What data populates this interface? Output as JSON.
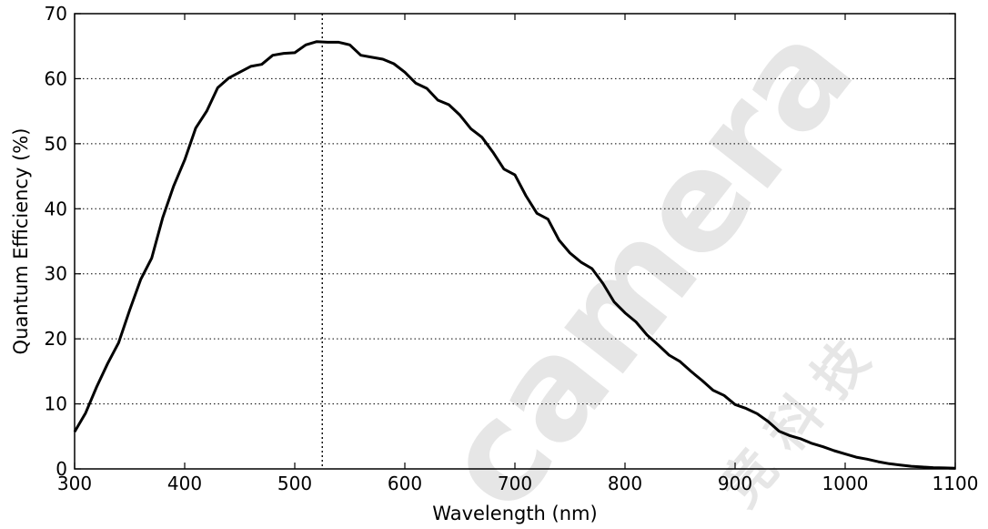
{
  "watermark": {
    "text": "camera",
    "cjk": "竞 科 技"
  },
  "chart_data": {
    "type": "line",
    "title": "",
    "xlabel": "Wavelength (nm)",
    "ylabel": "Quantum Efficiency (%)",
    "xlim": [
      300,
      1100
    ],
    "ylim": [
      0,
      70
    ],
    "xticks": [
      300,
      400,
      500,
      600,
      700,
      800,
      900,
      1000,
      1100
    ],
    "yticks": [
      0,
      10,
      20,
      30,
      40,
      50,
      60,
      70
    ],
    "grid": "horizontal dotted",
    "vertical_marker_x": 525,
    "line_color": "#000000",
    "series": [
      {
        "x": [
          300,
          310,
          320,
          330,
          340,
          350,
          360,
          370,
          380,
          390,
          400,
          410,
          420,
          430,
          440,
          450,
          460,
          470,
          480,
          490,
          500,
          510,
          520,
          530,
          540,
          550,
          560,
          570,
          580,
          590,
          600,
          610,
          620,
          630,
          640,
          650,
          660,
          670,
          680,
          690,
          700,
          710,
          720,
          730,
          740,
          750,
          760,
          770,
          780,
          790,
          800,
          810,
          820,
          830,
          840,
          850,
          860,
          870,
          880,
          890,
          900,
          910,
          920,
          930,
          940,
          950,
          960,
          970,
          980,
          990,
          1000,
          1010,
          1020,
          1030,
          1040,
          1050,
          1060,
          1070,
          1080,
          1090,
          1100
        ],
        "values": [
          5.7,
          8.6,
          12.6,
          16.2,
          19.4,
          24.4,
          29.1,
          32.4,
          38.6,
          43.5,
          47.5,
          52.4,
          55.0,
          58.6,
          60.1,
          61.0,
          61.9,
          62.2,
          63.6,
          63.9,
          64.0,
          65.2,
          65.7,
          65.6,
          65.6,
          65.2,
          63.6,
          63.3,
          63.0,
          62.3,
          61.0,
          59.3,
          58.5,
          56.7,
          56.0,
          54.4,
          52.3,
          51.0,
          48.7,
          46.1,
          45.2,
          42.0,
          39.3,
          38.4,
          35.2,
          33.2,
          31.8,
          30.8,
          28.5,
          25.7,
          24.0,
          22.6,
          20.6,
          19.1,
          17.5,
          16.5,
          15.0,
          13.6,
          12.1,
          11.3,
          9.9,
          9.3,
          8.5,
          7.3,
          5.8,
          5.1,
          4.6,
          3.9,
          3.4,
          2.8,
          2.3,
          1.8,
          1.5,
          1.1,
          0.8,
          0.6,
          0.4,
          0.3,
          0.2,
          0.15,
          0.1
        ]
      }
    ]
  }
}
